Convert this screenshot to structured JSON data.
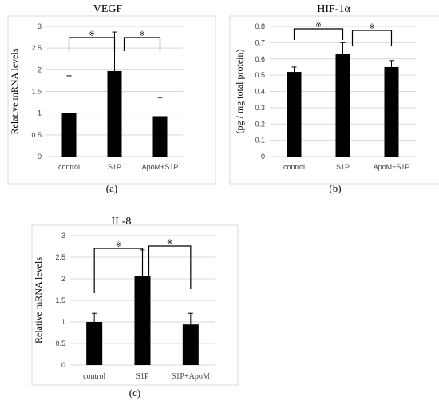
{
  "chart_data": [
    {
      "type": "bar",
      "title": "VEGF",
      "ylabel": "Relative mRNA levels",
      "panel_label": "(a)",
      "categories": [
        "control",
        "S1P",
        "ApoM+S1P"
      ],
      "values": [
        1.0,
        1.97,
        0.93
      ],
      "errors": [
        0.86,
        0.9,
        0.43
      ],
      "ylim": [
        0,
        3
      ],
      "yticks": [
        "0",
        "0.5",
        "1",
        "1.5",
        "2",
        "2.5",
        "3"
      ],
      "grid": true,
      "significance_symbol": "※",
      "comparisons": [
        [
          0,
          1
        ],
        [
          1,
          2
        ]
      ]
    },
    {
      "type": "bar",
      "title": "HIF-1α",
      "ylabel": "(pg / mg total protein)",
      "panel_label": "(b)",
      "categories": [
        "control",
        "S1P",
        "ApoM+S1P"
      ],
      "values": [
        0.52,
        0.63,
        0.55
      ],
      "errors": [
        0.03,
        0.07,
        0.04
      ],
      "ylim": [
        0,
        0.8
      ],
      "yticks": [
        "0",
        "0.1",
        "0.2",
        "0.3",
        "0.4",
        "0.5",
        "0.6",
        "0.7",
        "0.8"
      ],
      "grid": true,
      "significance_symbol": "※",
      "comparisons": [
        [
          0,
          1
        ],
        [
          1,
          2
        ]
      ]
    },
    {
      "type": "bar",
      "title": "IL-8",
      "ylabel": "Relative mRNA levels",
      "panel_label": "(c)",
      "categories": [
        "control",
        "S1P",
        "S1P+ApoM"
      ],
      "values": [
        1.0,
        2.07,
        0.94
      ],
      "errors": [
        0.2,
        0.6,
        0.26
      ],
      "ylim": [
        0,
        3
      ],
      "yticks": [
        "0",
        "0.5",
        "1",
        "1.5",
        "2",
        "2.5",
        "3"
      ],
      "grid": true,
      "significance_symbol": "※",
      "comparisons": [
        [
          0,
          1
        ],
        [
          1,
          2
        ]
      ]
    }
  ]
}
